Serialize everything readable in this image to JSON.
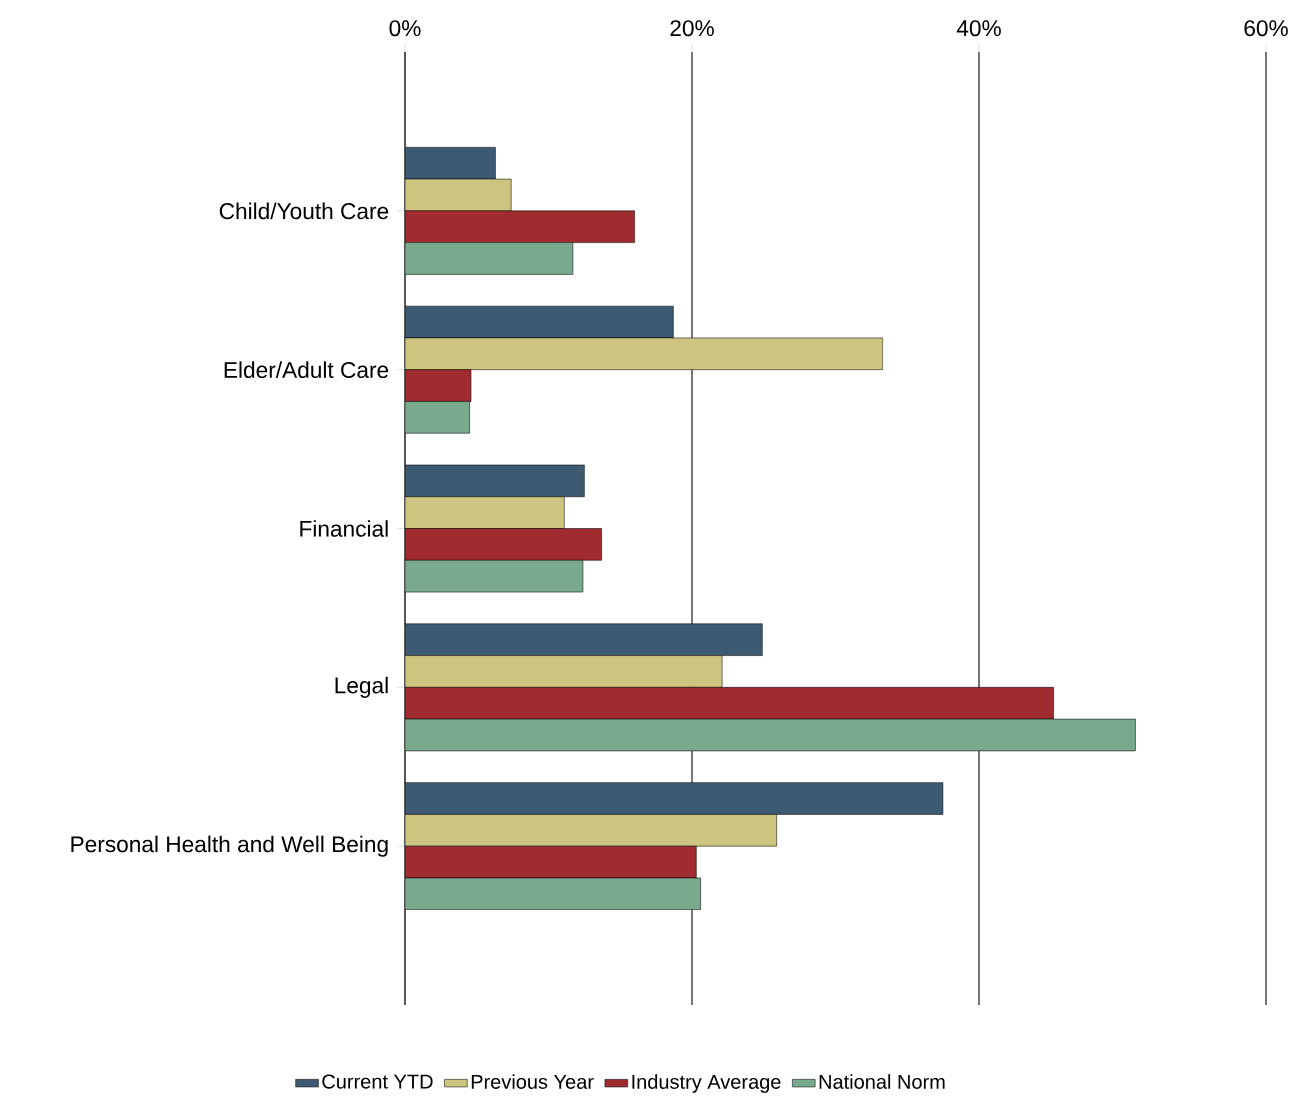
{
  "chart_data": {
    "type": "bar",
    "orientation": "horizontal",
    "categories": [
      "Child/Youth Care",
      "Elder/Adult Care",
      "Financial",
      "Legal",
      "Personal Health and Well Being"
    ],
    "series": [
      {
        "name": "Current YTD",
        "color": "#3d5a73",
        "values": [
          6.3,
          18.7,
          12.5,
          24.9,
          37.5
        ]
      },
      {
        "name": "Previous Year",
        "color": "#cdc57f",
        "values": [
          7.4,
          33.3,
          11.1,
          22.1,
          25.9
        ]
      },
      {
        "name": "Industry Average",
        "color": "#a02c30",
        "values": [
          16.0,
          4.6,
          13.7,
          45.2,
          20.3
        ]
      },
      {
        "name": "National Norm",
        "color": "#79aa8e",
        "values": [
          11.7,
          4.5,
          12.4,
          50.9,
          20.6
        ]
      }
    ],
    "xlim": [
      0,
      60
    ],
    "xticks": [
      {
        "value": 0,
        "label": "0%"
      },
      {
        "value": 20,
        "label": "20%"
      },
      {
        "value": 40,
        "label": "40%"
      },
      {
        "value": 60,
        "label": "60%"
      }
    ],
    "grid": "x",
    "legend": "bottom"
  }
}
